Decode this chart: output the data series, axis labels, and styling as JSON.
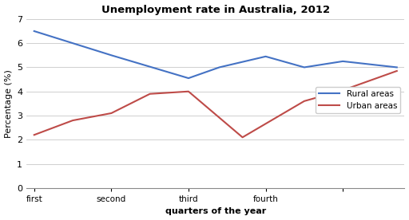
{
  "title": "Unemployment rate in Australia, 2012",
  "xlabel": "quarters of the year",
  "ylabel": "Percentage (%)",
  "rural_color": "#4472C4",
  "urban_color": "#BE4B48",
  "ylim": [
    0,
    7
  ],
  "yticks": [
    0,
    1,
    2,
    3,
    4,
    5,
    6,
    7
  ],
  "xtick_positions": [
    0,
    1,
    2,
    3,
    4
  ],
  "xtick_labels": [
    "first",
    "second",
    "third",
    "fourth",
    ""
  ],
  "xlim": [
    -0.1,
    4.8
  ],
  "background": "#FFFFFF",
  "legend_rural": "Rural areas",
  "legend_urban": "Urban areas",
  "rural_x": [
    0,
    0.5,
    1.0,
    2.0,
    2.4,
    3.0,
    3.5,
    4.0,
    4.7
  ],
  "rural_y": [
    6.5,
    6.0,
    5.5,
    4.55,
    5.0,
    5.45,
    5.0,
    5.25,
    5.0
  ],
  "urban_x": [
    0,
    0.5,
    1.0,
    1.5,
    2.0,
    2.7,
    3.5,
    4.0,
    4.7
  ],
  "urban_y": [
    2.2,
    2.8,
    3.1,
    3.9,
    4.0,
    2.1,
    3.6,
    4.05,
    4.85
  ]
}
